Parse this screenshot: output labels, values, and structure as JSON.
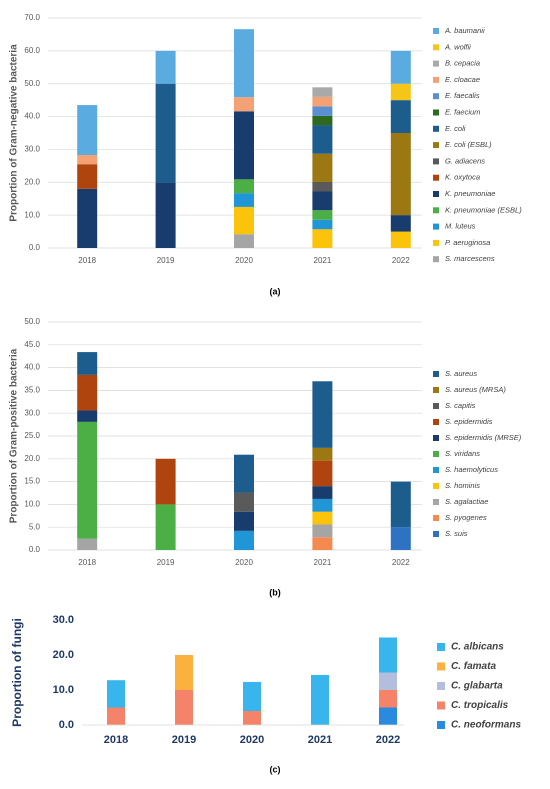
{
  "chart_data": [
    {
      "type": "bar",
      "stacked": true,
      "caption": "(a)",
      "ylabel": "Proportion of Gram-negative bacteria",
      "grid": true,
      "categories": [
        "2018",
        "2019",
        "2020",
        "2021",
        "2022"
      ],
      "ylim": [
        0,
        70
      ],
      "yticks": [
        {
          "value": 0,
          "label": "0.0"
        },
        {
          "value": 10,
          "label": "10.0"
        },
        {
          "value": 20,
          "label": "20.0"
        },
        {
          "value": 30,
          "label": "30.0"
        },
        {
          "value": 40,
          "label": "40.0"
        },
        {
          "value": 50,
          "label": "50.0"
        },
        {
          "value": 60,
          "label": "60.0"
        },
        {
          "value": 70,
          "label": "70.0"
        }
      ],
      "series": [
        {
          "name": "A. baumanii",
          "color": "#5aace0",
          "values": [
            15.2,
            10,
            20.7,
            null,
            10
          ]
        },
        {
          "name": "A. wolfii",
          "color": "#f5c518",
          "values": [
            null,
            null,
            null,
            null,
            5
          ]
        },
        {
          "name": "B. cepacia",
          "color": "#a9a9a9",
          "values": [
            null,
            null,
            null,
            2.9,
            null
          ]
        },
        {
          "name": "E. cloacae",
          "color": "#f4a274",
          "values": [
            2.8,
            null,
            4.3,
            2.9,
            null
          ]
        },
        {
          "name": "E. faecalis",
          "color": "#5b8fcf",
          "values": [
            null,
            null,
            null,
            2.9,
            null
          ]
        },
        {
          "name": "E. faecium",
          "color": "#2d6a1f",
          "values": [
            null,
            null,
            null,
            2.9,
            null
          ]
        },
        {
          "name": "E. coli",
          "color": "#1c5d8e",
          "values": [
            null,
            30,
            null,
            8.6,
            10
          ]
        },
        {
          "name": "E. coli (ESBL)",
          "color": "#9b7812",
          "values": [
            null,
            null,
            null,
            8.6,
            25
          ]
        },
        {
          "name": "G. adiacens",
          "color": "#5a5a5a",
          "values": [
            null,
            null,
            null,
            2.9,
            null
          ]
        },
        {
          "name": "K. oxytoca",
          "color": "#b0440e",
          "values": [
            7.5,
            null,
            null,
            null,
            null
          ]
        },
        {
          "name": "K. pneumoniae",
          "color": "#183c6d",
          "values": [
            18,
            20,
            20.7,
            5.7,
            5
          ]
        },
        {
          "name": "K. pneumoniae (ESBL)",
          "color": "#4caf46",
          "values": [
            null,
            null,
            4.2,
            2.9,
            null
          ]
        },
        {
          "name": "M. luteus",
          "color": "#2096d6",
          "values": [
            null,
            null,
            4.2,
            2.9,
            null
          ]
        },
        {
          "name": "P. aeruginosa",
          "color": "#fbc30a",
          "values": [
            null,
            null,
            8.3,
            5.7,
            5
          ]
        },
        {
          "name": "S. marcescens",
          "color": "#a5a5a5",
          "values": [
            null,
            null,
            4.2,
            null,
            null
          ]
        }
      ]
    },
    {
      "type": "bar",
      "stacked": true,
      "caption": "(b)",
      "ylabel": "Proportion of Gram-positive bacteria",
      "grid": true,
      "categories": [
        "2018",
        "2019",
        "2020",
        "2021",
        "2022"
      ],
      "ylim": [
        0,
        50
      ],
      "yticks": [
        {
          "value": 0,
          "label": "0.0"
        },
        {
          "value": 5,
          "label": "5.0"
        },
        {
          "value": 10,
          "label": "10.0"
        },
        {
          "value": 15,
          "label": "15.0"
        },
        {
          "value": 20,
          "label": "20.0"
        },
        {
          "value": 25,
          "label": "25.0"
        },
        {
          "value": 30,
          "label": "30.0"
        },
        {
          "value": 35,
          "label": "35.0"
        },
        {
          "value": 40,
          "label": "40.0"
        },
        {
          "value": 45,
          "label": "45.0"
        },
        {
          "value": 50,
          "label": "50.0"
        }
      ],
      "series": [
        {
          "name": "S. aureus",
          "color": "#1c5d8e",
          "values": [
            5,
            null,
            8.3,
            14.6,
            10
          ]
        },
        {
          "name": "S. aureus (MRSA)",
          "color": "#9b7812",
          "values": [
            null,
            null,
            null,
            2.8,
            null
          ]
        },
        {
          "name": "S. capitis",
          "color": "#5a5a5a",
          "values": [
            null,
            null,
            4.2,
            null,
            null
          ]
        },
        {
          "name": "S. epidermidis",
          "color": "#b0440e",
          "values": [
            7.8,
            10,
            null,
            5.6,
            null
          ]
        },
        {
          "name": "S. epidermidis (MRSE)",
          "color": "#183c6d",
          "values": [
            2.5,
            null,
            4.2,
            2.8,
            null
          ]
        },
        {
          "name": "S. viridans",
          "color": "#4caf46",
          "values": [
            25.6,
            10,
            null,
            null,
            null
          ]
        },
        {
          "name": "S. haemolyticus",
          "color": "#2096d6",
          "values": [
            null,
            null,
            4.2,
            2.8,
            null
          ]
        },
        {
          "name": "S. hominis",
          "color": "#fbc30a",
          "values": [
            null,
            null,
            null,
            2.8,
            null
          ]
        },
        {
          "name": "S. agalactiae",
          "color": "#a5a5a5",
          "values": [
            2.5,
            null,
            null,
            2.8,
            null
          ]
        },
        {
          "name": "S. pyogenes",
          "color": "#f48a50",
          "values": [
            null,
            null,
            null,
            2.8,
            null
          ]
        },
        {
          "name": "S. suis",
          "color": "#2e72c4",
          "values": [
            null,
            null,
            null,
            null,
            5
          ]
        }
      ]
    },
    {
      "type": "bar",
      "stacked": true,
      "caption": "(c)",
      "ylabel": "Proportion of fungi",
      "grid": false,
      "categories": [
        "2018",
        "2019",
        "2020",
        "2021",
        "2022"
      ],
      "ylim": [
        0,
        30
      ],
      "yticks": [
        {
          "value": 0,
          "label": "0.0"
        },
        {
          "value": 10,
          "label": "10.0"
        },
        {
          "value": 20,
          "label": "20.0"
        },
        {
          "value": 30,
          "label": "30.0"
        }
      ],
      "series": [
        {
          "name": "C. albicans",
          "color": "#38b5ec",
          "values": [
            7.8,
            null,
            8.3,
            14.3,
            10
          ]
        },
        {
          "name": "C. famata",
          "color": "#fbb13e",
          "values": [
            null,
            10,
            null,
            null,
            null
          ]
        },
        {
          "name": "C. glabarta",
          "color": "#b3bedc",
          "values": [
            null,
            null,
            null,
            null,
            5
          ]
        },
        {
          "name": "C. tropicalis",
          "color": "#f4836a",
          "values": [
            5,
            10,
            4,
            null,
            5
          ]
        },
        {
          "name": "C. neoformans",
          "color": "#2a8ae0",
          "values": [
            null,
            null,
            null,
            null,
            5
          ]
        }
      ]
    }
  ]
}
